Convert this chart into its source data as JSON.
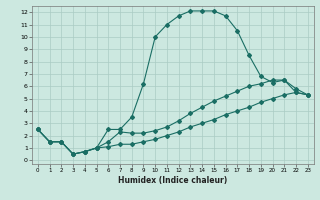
{
  "xlabel": "Humidex (Indice chaleur)",
  "ylabel": "",
  "xlim": [
    -0.5,
    23.5
  ],
  "ylim": [
    -0.3,
    12.5
  ],
  "xticks": [
    0,
    1,
    2,
    3,
    4,
    5,
    6,
    7,
    8,
    9,
    10,
    11,
    12,
    13,
    14,
    15,
    16,
    17,
    18,
    19,
    20,
    21,
    22,
    23
  ],
  "yticks": [
    0,
    1,
    2,
    3,
    4,
    5,
    6,
    7,
    8,
    9,
    10,
    11,
    12
  ],
  "bg_color": "#cce8e0",
  "grid_color": "#aaccc4",
  "line_color": "#1a6e64",
  "line1_x": [
    0,
    1,
    2,
    3,
    4,
    5,
    6,
    7,
    8,
    9,
    10,
    11,
    12,
    13,
    14,
    15,
    16,
    17,
    18,
    19,
    20,
    21,
    22,
    23
  ],
  "line1_y": [
    2.5,
    1.5,
    1.5,
    0.5,
    0.7,
    1.0,
    2.5,
    2.5,
    3.5,
    6.2,
    10.0,
    11.0,
    11.7,
    12.1,
    12.1,
    12.1,
    11.7,
    10.5,
    8.5,
    6.8,
    6.3,
    6.5,
    5.5,
    5.3
  ],
  "line2_x": [
    0,
    1,
    2,
    3,
    4,
    5,
    6,
    7,
    8,
    9,
    10,
    11,
    12,
    13,
    14,
    15,
    16,
    17,
    18,
    19,
    20,
    21,
    22,
    23
  ],
  "line2_y": [
    2.5,
    1.5,
    1.5,
    0.5,
    0.7,
    1.0,
    1.5,
    2.3,
    2.2,
    2.2,
    2.4,
    2.7,
    3.2,
    3.8,
    4.3,
    4.8,
    5.2,
    5.6,
    6.0,
    6.2,
    6.5,
    6.5,
    5.8,
    5.3
  ],
  "line3_x": [
    0,
    1,
    2,
    3,
    4,
    5,
    6,
    7,
    8,
    9,
    10,
    11,
    12,
    13,
    14,
    15,
    16,
    17,
    18,
    19,
    20,
    21,
    22,
    23
  ],
  "line3_y": [
    2.5,
    1.5,
    1.5,
    0.5,
    0.7,
    1.0,
    1.1,
    1.3,
    1.3,
    1.5,
    1.7,
    2.0,
    2.3,
    2.7,
    3.0,
    3.3,
    3.7,
    4.0,
    4.3,
    4.7,
    5.0,
    5.3,
    5.5,
    5.3
  ]
}
